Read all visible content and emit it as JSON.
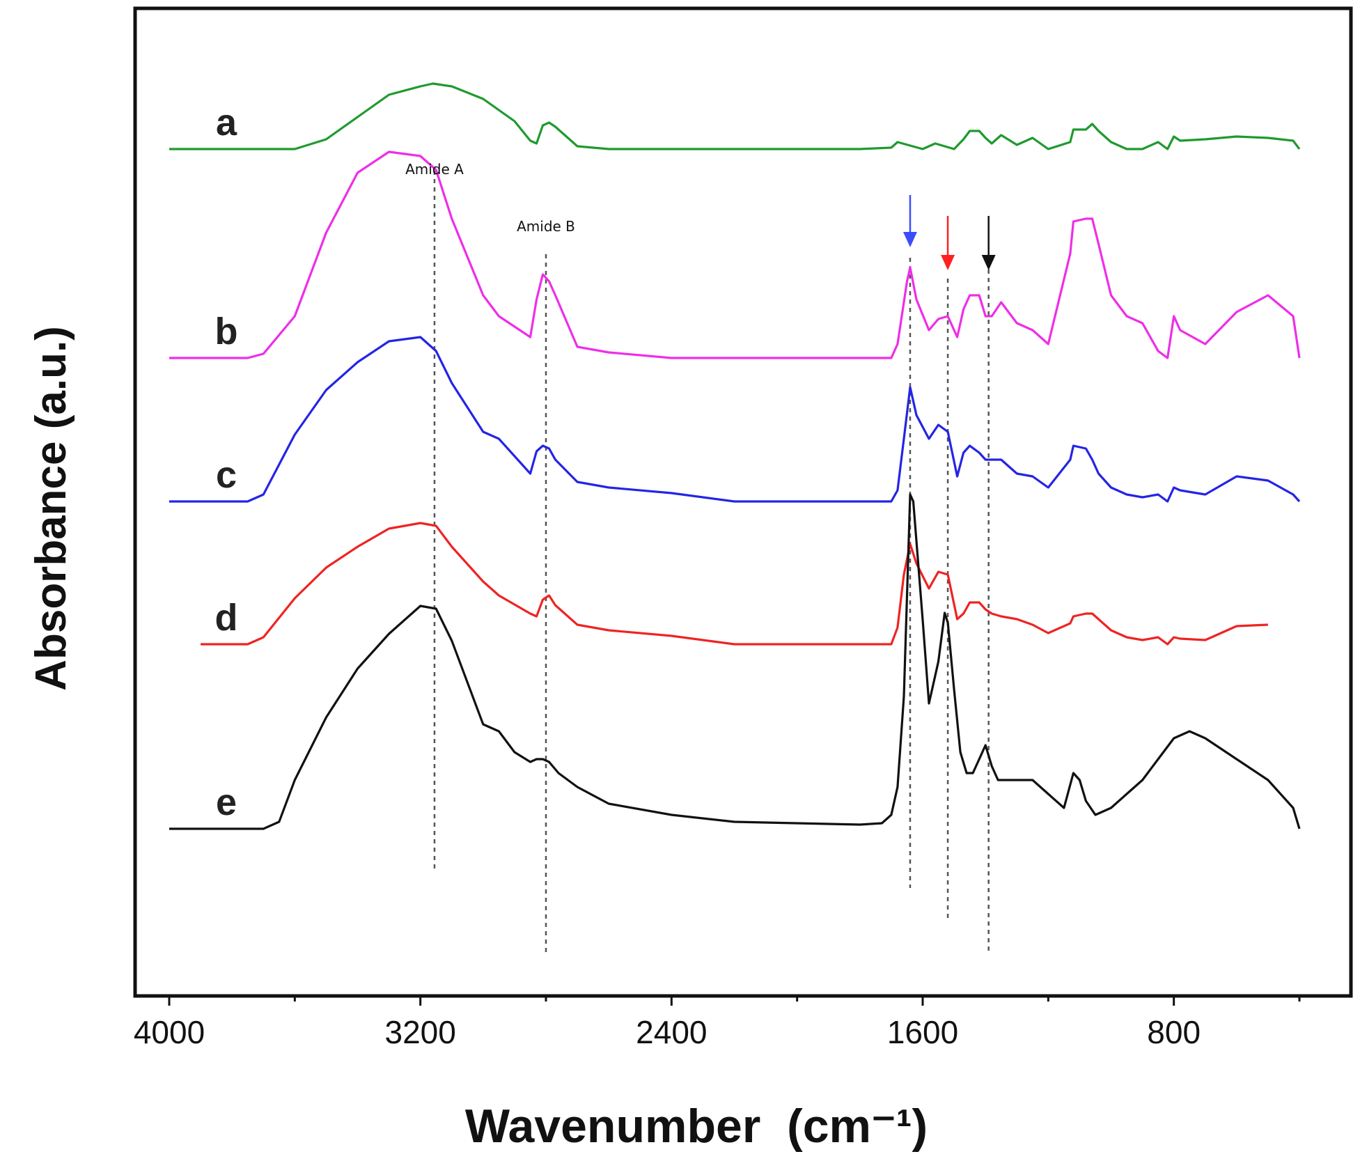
{
  "chart_data": {
    "type": "line",
    "xlabel": "Wavenumber  (cm⁻¹)",
    "ylabel": "Absorbance (a.u.)",
    "xlim": [
      4000,
      400
    ],
    "x_ticks": [
      4000,
      3200,
      2400,
      1600,
      800
    ],
    "x_minor_ticks": [
      3600,
      2800,
      2000,
      1200,
      400
    ],
    "grid": false,
    "legend": "inline letters at left of each trace",
    "annotations": [
      {
        "text": "Amide A",
        "x": 3155
      },
      {
        "text": "Amide B",
        "x": 2800
      }
    ],
    "reference_lines": [
      3155,
      2800,
      1640,
      1520,
      1390
    ],
    "arrows": [
      {
        "x": 1640,
        "color": "#3b4cff"
      },
      {
        "x": 1520,
        "color": "#ff2020"
      },
      {
        "x": 1390,
        "color": "#111111"
      }
    ],
    "series": [
      {
        "name": "a",
        "color": "#1f9a2e",
        "baseline": 0.84,
        "ystep": 0.01,
        "x": [
          4000,
          3600,
          3500,
          3400,
          3300,
          3200,
          3160,
          3100,
          3000,
          2900,
          2850,
          2830,
          2810,
          2790,
          2770,
          2700,
          2600,
          2400,
          2200,
          2000,
          1800,
          1700,
          1680,
          1600,
          1560,
          1500,
          1470,
          1450,
          1420,
          1400,
          1380,
          1350,
          1300,
          1250,
          1200,
          1130,
          1120,
          1080,
          1060,
          1040,
          1000,
          950,
          900,
          850,
          820,
          800,
          780,
          700,
          600,
          500,
          420,
          400
        ],
        "y": [
          0,
          0,
          7,
          23,
          39,
          45,
          47,
          45,
          36,
          20,
          6,
          4,
          17,
          19,
          16,
          2,
          0,
          0,
          0,
          0,
          0,
          1,
          5,
          0,
          4,
          0,
          7,
          13,
          13,
          8,
          4,
          10,
          3,
          8,
          0,
          5,
          14,
          14,
          18,
          13,
          5,
          0,
          0,
          5,
          0,
          9,
          6,
          7,
          9,
          8,
          6,
          0
        ]
      },
      {
        "name": "b",
        "color": "#ee2ee8",
        "baseline": 3.84,
        "ystep": 0.01,
        "x": [
          4000,
          3750,
          3700,
          3600,
          3500,
          3400,
          3300,
          3200,
          3150,
          3100,
          3000,
          2950,
          2850,
          2830,
          2810,
          2790,
          2770,
          2700,
          2600,
          2400,
          2200,
          2000,
          1800,
          1700,
          1680,
          1650,
          1640,
          1620,
          1580,
          1550,
          1520,
          1490,
          1470,
          1450,
          1420,
          1400,
          1380,
          1350,
          1300,
          1250,
          1200,
          1130,
          1120,
          1080,
          1060,
          1040,
          1000,
          950,
          900,
          850,
          820,
          800,
          780,
          700,
          600,
          500,
          420,
          400
        ],
        "y": [
          0,
          0,
          3,
          30,
          90,
          133,
          148,
          145,
          135,
          100,
          45,
          30,
          15,
          42,
          60,
          55,
          45,
          8,
          4,
          0,
          0,
          0,
          0,
          0,
          10,
          55,
          65,
          42,
          20,
          28,
          30,
          15,
          35,
          45,
          45,
          30,
          30,
          40,
          25,
          20,
          10,
          75,
          98,
          100,
          100,
          82,
          45,
          30,
          25,
          5,
          0,
          30,
          20,
          10,
          33,
          45,
          30,
          0
        ]
      },
      {
        "name": "c",
        "color": "#2424e6",
        "baseline": 5.9,
        "ystep": 0.01,
        "x": [
          4000,
          3750,
          3700,
          3600,
          3500,
          3400,
          3300,
          3200,
          3150,
          3100,
          3000,
          2950,
          2850,
          2830,
          2810,
          2790,
          2770,
          2700,
          2600,
          2400,
          2200,
          2000,
          1800,
          1700,
          1680,
          1660,
          1640,
          1620,
          1580,
          1550,
          1520,
          1490,
          1470,
          1450,
          1420,
          1400,
          1380,
          1350,
          1300,
          1250,
          1200,
          1130,
          1120,
          1080,
          1060,
          1040,
          1000,
          950,
          900,
          850,
          820,
          800,
          780,
          700,
          600,
          500,
          420,
          400
        ],
        "y": [
          0,
          0,
          5,
          48,
          80,
          100,
          115,
          118,
          108,
          85,
          50,
          45,
          20,
          36,
          40,
          38,
          30,
          14,
          10,
          6,
          0,
          0,
          0,
          0,
          8,
          45,
          82,
          62,
          45,
          55,
          50,
          18,
          35,
          40,
          35,
          30,
          30,
          30,
          20,
          18,
          10,
          30,
          40,
          38,
          30,
          20,
          10,
          5,
          3,
          5,
          0,
          10,
          8,
          5,
          18,
          15,
          5,
          0
        ]
      },
      {
        "name": "d",
        "color": "#ef2323",
        "baseline": 7.95,
        "ystep": 0.01,
        "x": [
          3900,
          3750,
          3700,
          3600,
          3500,
          3400,
          3300,
          3200,
          3150,
          3100,
          3000,
          2950,
          2850,
          2830,
          2810,
          2790,
          2770,
          2700,
          2600,
          2400,
          2200,
          2000,
          1800,
          1700,
          1680,
          1660,
          1640,
          1620,
          1580,
          1550,
          1520,
          1490,
          1470,
          1450,
          1420,
          1400,
          1380,
          1350,
          1300,
          1250,
          1200,
          1130,
          1120,
          1080,
          1060,
          1040,
          1000,
          950,
          900,
          850,
          820,
          800,
          780,
          700,
          600,
          500
        ],
        "y": [
          0,
          0,
          5,
          33,
          55,
          70,
          83,
          87,
          85,
          70,
          45,
          35,
          22,
          20,
          32,
          35,
          28,
          14,
          10,
          6,
          0,
          0,
          0,
          0,
          12,
          50,
          72,
          58,
          40,
          52,
          50,
          18,
          22,
          30,
          30,
          25,
          22,
          20,
          18,
          14,
          8,
          15,
          20,
          22,
          22,
          18,
          10,
          5,
          3,
          5,
          0,
          5,
          4,
          3,
          13,
          14
        ]
      },
      {
        "name": "e",
        "color": "#111111",
        "baseline": 10.6,
        "ystep": 0.01,
        "x": [
          4000,
          3700,
          3650,
          3600,
          3500,
          3400,
          3300,
          3200,
          3150,
          3100,
          3000,
          2950,
          2900,
          2850,
          2830,
          2810,
          2790,
          2760,
          2700,
          2600,
          2400,
          2200,
          2000,
          1800,
          1730,
          1700,
          1680,
          1660,
          1640,
          1630,
          1600,
          1580,
          1550,
          1530,
          1520,
          1500,
          1480,
          1460,
          1440,
          1420,
          1400,
          1380,
          1360,
          1300,
          1250,
          1200,
          1150,
          1120,
          1100,
          1080,
          1050,
          1000,
          950,
          900,
          850,
          800,
          750,
          700,
          600,
          500,
          420,
          400
        ],
        "y": [
          0,
          0,
          5,
          35,
          80,
          115,
          140,
          160,
          158,
          135,
          75,
          70,
          55,
          48,
          50,
          50,
          48,
          40,
          30,
          18,
          10,
          5,
          4,
          3,
          4,
          10,
          30,
          95,
          240,
          235,
          150,
          90,
          120,
          155,
          148,
          100,
          55,
          40,
          40,
          50,
          60,
          45,
          35,
          35,
          35,
          25,
          15,
          40,
          35,
          20,
          10,
          15,
          25,
          35,
          50,
          65,
          70,
          65,
          50,
          35,
          15,
          0
        ]
      }
    ]
  }
}
